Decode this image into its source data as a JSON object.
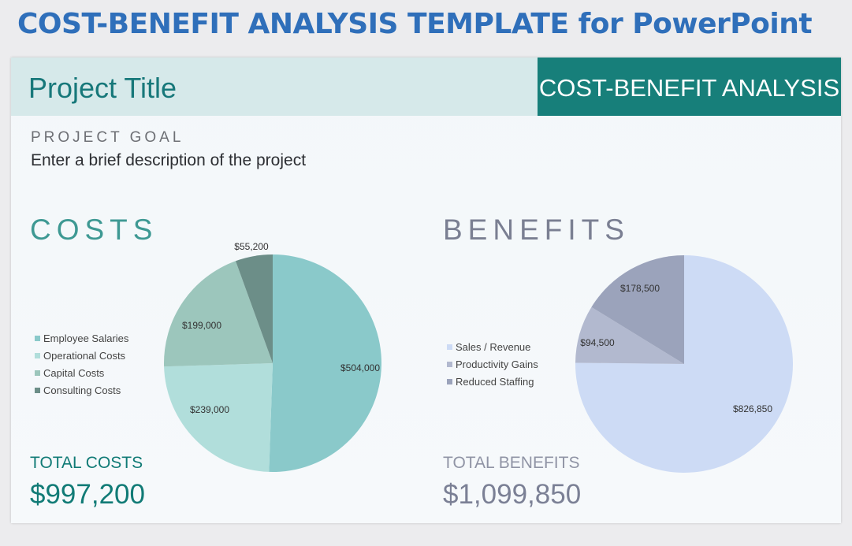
{
  "header": {
    "title": "COST-BENEFIT ANALYSIS TEMPLATE for PowerPoint"
  },
  "slide": {
    "project_title": "Project Title",
    "analysis_label": "COST-BENEFIT ANALYSIS",
    "goal_label": "PROJECT GOAL",
    "goal_text": "Enter a brief description of the project",
    "costs": {
      "heading": "COSTS",
      "total_label": "TOTAL COSTS",
      "total_value": "$997,200"
    },
    "benefits": {
      "heading": "BENEFITS",
      "total_label": "TOTAL BENEFITS",
      "total_value": "$1,099,850"
    }
  },
  "chart_data": [
    {
      "type": "pie",
      "name_key": "costs",
      "categories": [
        "Employee Salaries",
        "Operational Costs",
        "Capital Costs",
        "Consulting Costs"
      ],
      "values": [
        504000,
        239000,
        199000,
        55200
      ],
      "value_labels": [
        "$504,000",
        "$239,000",
        "$199,000",
        "$55,200"
      ],
      "colors": [
        "#8ac9ca",
        "#b1dedb",
        "#9cc6bc",
        "#6c8e88"
      ],
      "legend_position": "left"
    },
    {
      "type": "pie",
      "name_key": "benefits",
      "categories": [
        "Sales / Revenue",
        "Productivity Gains",
        "Reduced Staffing"
      ],
      "values": [
        826850,
        94500,
        178500
      ],
      "value_labels": [
        "$826,850",
        "$94,500",
        "$178,500"
      ],
      "colors": [
        "#cddbf5",
        "#b2b9cf",
        "#9ba3bb"
      ],
      "legend_position": "left"
    }
  ]
}
